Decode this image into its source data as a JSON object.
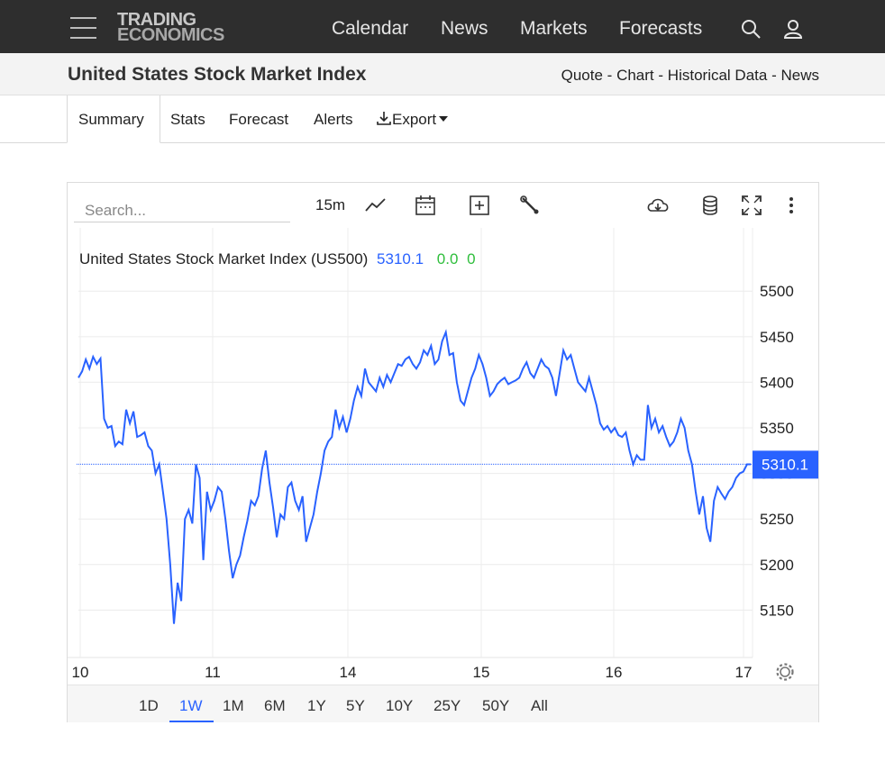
{
  "header": {
    "logo_line1": "TRADING",
    "logo_line2": "ECONOMICS",
    "nav": [
      "Calendar",
      "News",
      "Markets",
      "Forecasts"
    ],
    "icons": [
      "search-icon",
      "user-icon",
      "menu-icon"
    ]
  },
  "title": {
    "text": "United States Stock Market Index",
    "links": [
      "Quote",
      "Chart",
      "Historical Data",
      "News"
    ],
    "separator": "-"
  },
  "tabs": {
    "items": [
      "Summary",
      "Stats",
      "Forecast",
      "Alerts",
      "Export"
    ],
    "active": "Summary"
  },
  "toolbar": {
    "search_placeholder": "Search...",
    "interval": "15m",
    "icons": [
      "line-chart-icon",
      "calendar-icon",
      "add-indicator-icon",
      "wrench-icon",
      "download-icon",
      "database-icon",
      "fullscreen-icon",
      "more-icon"
    ]
  },
  "chart": {
    "legend_name": "United States Stock Market Index (US500)",
    "legend_price": "5310.1",
    "legend_change": "0.0",
    "legend_pct": "0",
    "last_price_label": "5310.1",
    "settings_icon": "gear-icon"
  },
  "ranges": {
    "items": [
      "1D",
      "1W",
      "1M",
      "6M",
      "1Y",
      "5Y",
      "10Y",
      "25Y",
      "50Y",
      "All"
    ],
    "active": "1W"
  },
  "colors": {
    "line": "#2962ff",
    "up": "#2fbe3c",
    "topbar": "#2e2e2e",
    "price_badge": "#2962ff"
  },
  "chart_data": {
    "type": "line",
    "title": "United States Stock Market Index (US500)",
    "xlabel": "",
    "ylabel": "",
    "x_ticks": [
      "10",
      "11",
      "14",
      "15",
      "16",
      "17"
    ],
    "y_ticks": [
      5150,
      5200,
      5250,
      5300,
      5350,
      5400,
      5450,
      5500
    ],
    "ylim": [
      5100,
      5520
    ],
    "last_price": 5310.1,
    "series": [
      {
        "name": "US500",
        "values": [
          5405,
          5412,
          5425,
          5415,
          5428,
          5420,
          5426,
          5360,
          5350,
          5352,
          5330,
          5335,
          5332,
          5370,
          5355,
          5368,
          5340,
          5342,
          5345,
          5330,
          5325,
          5300,
          5310,
          5280,
          5250,
          5200,
          5135,
          5180,
          5160,
          5250,
          5260,
          5245,
          5310,
          5295,
          5205,
          5280,
          5260,
          5270,
          5285,
          5280,
          5250,
          5215,
          5185,
          5200,
          5210,
          5230,
          5248,
          5270,
          5265,
          5275,
          5305,
          5325,
          5290,
          5262,
          5230,
          5255,
          5250,
          5285,
          5290,
          5270,
          5260,
          5275,
          5225,
          5240,
          5255,
          5280,
          5300,
          5325,
          5335,
          5340,
          5370,
          5350,
          5362,
          5345,
          5360,
          5380,
          5395,
          5385,
          5415,
          5400,
          5395,
          5390,
          5405,
          5395,
          5408,
          5400,
          5410,
          5420,
          5418,
          5425,
          5428,
          5420,
          5415,
          5422,
          5435,
          5430,
          5440,
          5420,
          5425,
          5445,
          5455,
          5430,
          5432,
          5400,
          5380,
          5375,
          5390,
          5405,
          5415,
          5430,
          5420,
          5405,
          5385,
          5390,
          5398,
          5402,
          5405,
          5398,
          5400,
          5402,
          5405,
          5415,
          5422,
          5410,
          5405,
          5415,
          5425,
          5418,
          5415,
          5405,
          5385,
          5410,
          5435,
          5425,
          5430,
          5415,
          5400,
          5395,
          5390,
          5405,
          5390,
          5375,
          5355,
          5348,
          5352,
          5345,
          5350,
          5342,
          5340,
          5345,
          5325,
          5310,
          5320,
          5315,
          5315,
          5375,
          5350,
          5360,
          5345,
          5352,
          5340,
          5330,
          5335,
          5345,
          5360,
          5350,
          5325,
          5310,
          5280,
          5255,
          5275,
          5240,
          5225,
          5270,
          5285,
          5278,
          5272,
          5280,
          5285,
          5295,
          5300,
          5302,
          5310,
          5310
        ]
      }
    ],
    "grid": true,
    "legend": "top-left"
  }
}
